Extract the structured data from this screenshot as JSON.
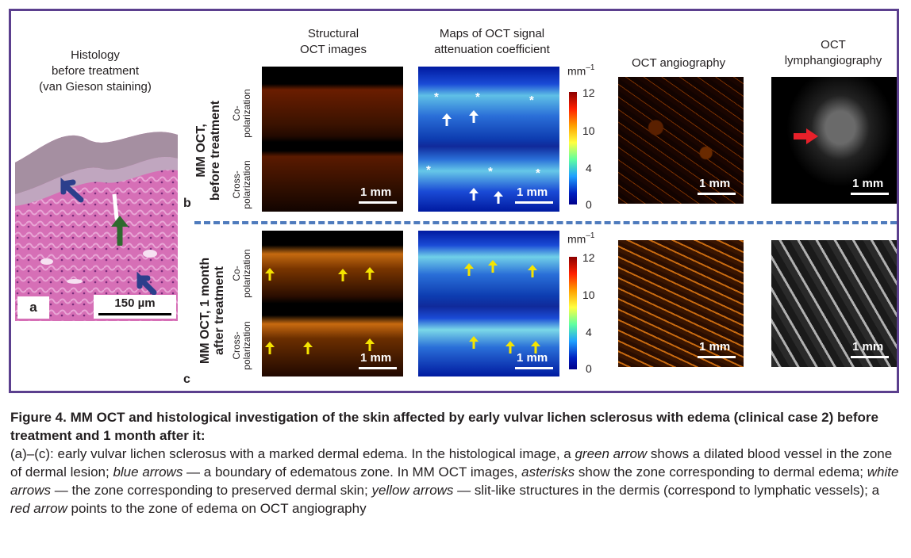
{
  "headers": {
    "histology": [
      "Histology",
      "before treatment",
      "(van Gieson staining)"
    ],
    "structural": [
      "Structural",
      "OCT images"
    ],
    "maps": [
      "Maps of OCT signal",
      "attenuation coefficient"
    ],
    "angio": "OCT angiography",
    "lymph": [
      "OCT",
      "lymphangiography"
    ]
  },
  "histology": {
    "panel_label": "a",
    "scale": "150 µm"
  },
  "rows": {
    "b": {
      "label": "b",
      "title": [
        "MM OCT,",
        "before treatment"
      ]
    },
    "c": {
      "label": "c",
      "title": [
        "MM OCT, 1 month",
        "after treatment"
      ]
    }
  },
  "sublabels": {
    "co": [
      "Co-",
      "polarization"
    ],
    "cross": [
      "Cross-",
      "polarization"
    ]
  },
  "scale_mm": "1 mm",
  "colorbar": {
    "unit": "mm",
    "unit_sup": "–1",
    "ticks": [
      "12",
      "10",
      "4",
      "0"
    ]
  },
  "caption": {
    "title": "Figure 4. MM OCT and histological investigation of the skin affected by early vulvar lichen sclerosus with edema (clinical case 2) before treatment and 1 month after it:",
    "p1": "(a)–(c): early vulvar lichen sclerosus with a marked dermal edema. In the histological image, a ",
    "green_arrow": "green arrow",
    "p2": " shows a dilated blood vessel in the zone of dermal lesion; ",
    "blue_arrows": "blue arrows",
    "p3": " — a boundary of edematous zone. In MM OCT images, ",
    "asterisks": "asterisks",
    "p4": " show the zone corresponding to dermal edema; ",
    "white_arrows": "white arrows",
    "p5": " — the zone corresponding to preserved dermal skin; ",
    "yellow_arrows": "yellow arrows",
    "p6": " — slit-like structures in the dermis (correspond to lymphatic vessels); a ",
    "red_arrow": "red arrow",
    "p7": " points to the zone of edema on OCT angiography"
  },
  "colors": {
    "frame": "#5b3f8e",
    "dashed": "#4f7bbd",
    "yellow_arrow": "#f5e400",
    "red_arrow": "#e8202a"
  }
}
